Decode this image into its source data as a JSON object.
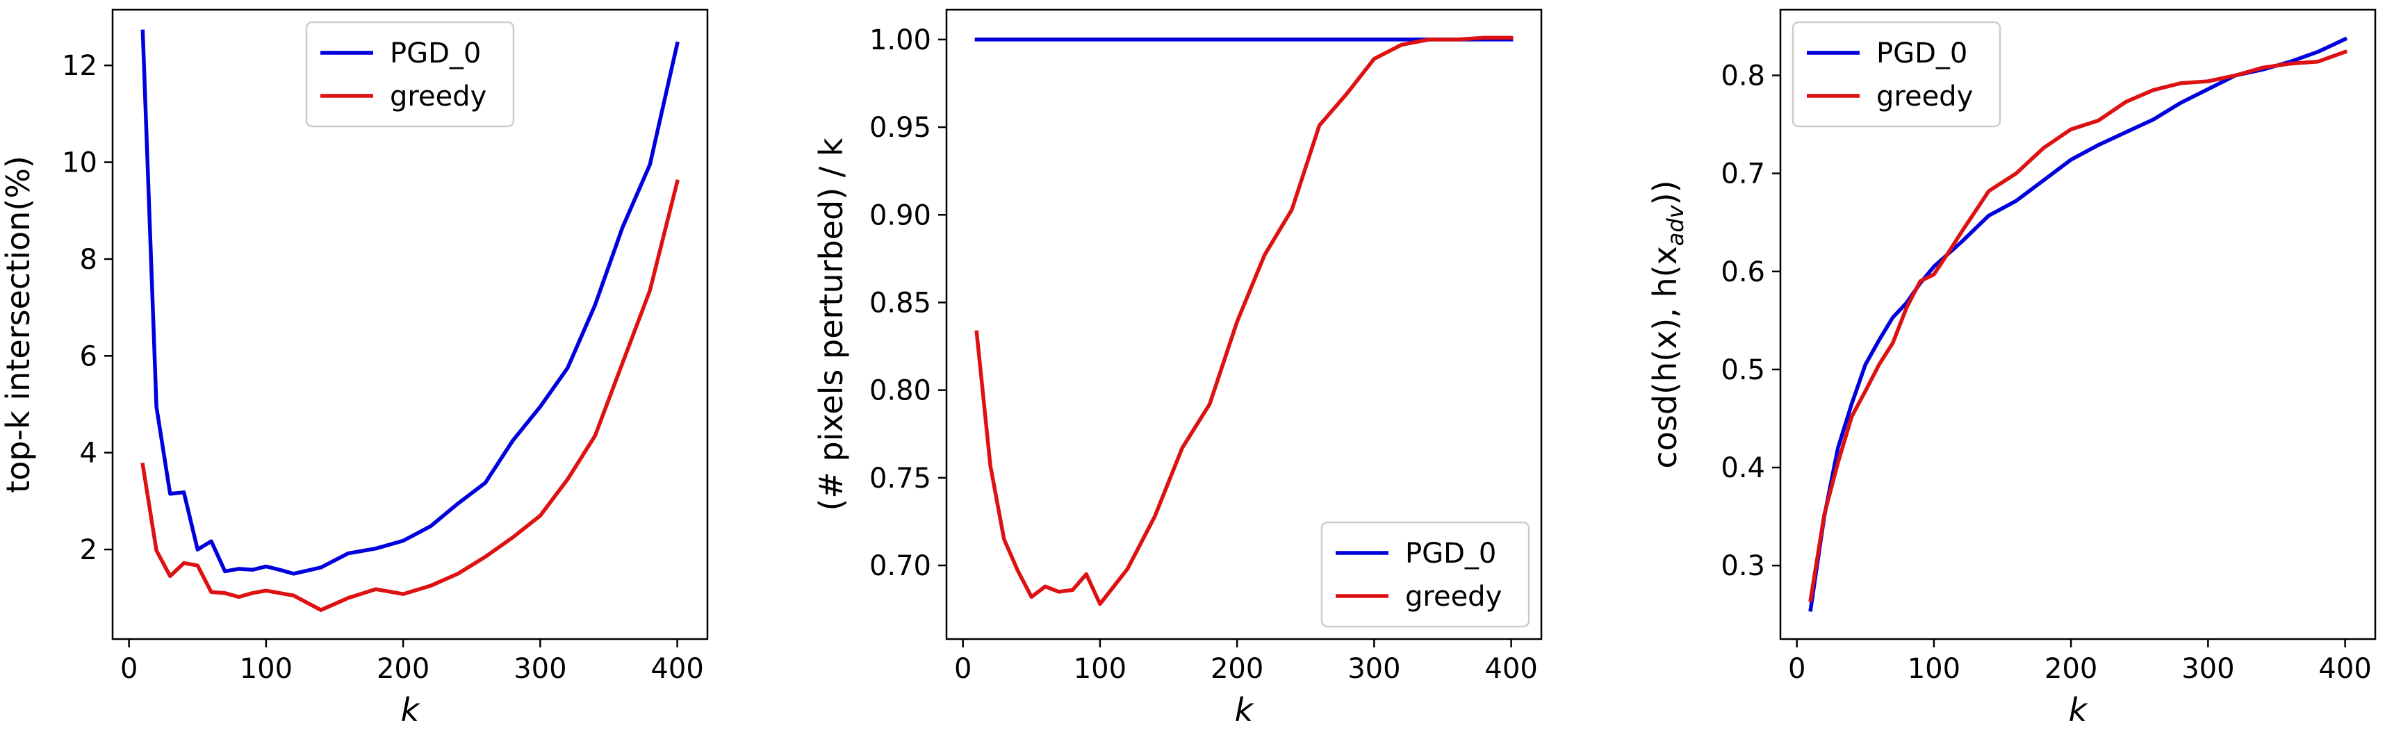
{
  "chart_data": [
    {
      "type": "line",
      "xlabel": "k",
      "ylabel": "top-k intersection(%)",
      "xlim": [
        -12,
        422
      ],
      "ylim": [
        0.15,
        13.15
      ],
      "xticks": [
        0,
        100,
        200,
        300,
        400
      ],
      "yticks": [
        2,
        4,
        6,
        8,
        10,
        12
      ],
      "ytick_format": "int",
      "legend_position": "upper center",
      "grid": false,
      "series": [
        {
          "name": "PGD_0",
          "color": "#0000dd",
          "x": [
            10,
            20,
            30,
            40,
            50,
            60,
            70,
            80,
            90,
            100,
            110,
            120,
            140,
            160,
            180,
            200,
            220,
            240,
            260,
            280,
            300,
            320,
            340,
            360,
            380,
            400
          ],
          "y": [
            12.7,
            4.95,
            3.15,
            3.18,
            2.0,
            2.17,
            1.55,
            1.6,
            1.58,
            1.65,
            1.58,
            1.5,
            1.63,
            1.92,
            2.02,
            2.18,
            2.48,
            2.95,
            3.38,
            4.25,
            4.95,
            5.75,
            7.05,
            8.65,
            9.95,
            12.45
          ]
        },
        {
          "name": "greedy",
          "color": "#dd1111",
          "x": [
            10,
            20,
            30,
            40,
            50,
            60,
            70,
            80,
            90,
            100,
            120,
            140,
            160,
            180,
            200,
            220,
            240,
            260,
            280,
            300,
            320,
            340,
            360,
            380,
            400
          ],
          "y": [
            3.75,
            1.98,
            1.45,
            1.72,
            1.67,
            1.12,
            1.1,
            1.02,
            1.1,
            1.15,
            1.05,
            0.75,
            1.0,
            1.18,
            1.08,
            1.25,
            1.5,
            1.85,
            2.25,
            2.7,
            3.45,
            4.35,
            5.85,
            7.35,
            9.6
          ]
        }
      ]
    },
    {
      "type": "line",
      "xlabel": "k",
      "ylabel": "(# pixels perturbed) / k",
      "xlim": [
        -12,
        422
      ],
      "ylim": [
        0.658,
        1.017
      ],
      "xticks": [
        0,
        100,
        200,
        300,
        400
      ],
      "yticks": [
        0.7,
        0.75,
        0.8,
        0.85,
        0.9,
        0.95,
        1.0
      ],
      "ytick_format": "2dp",
      "legend_position": "lower right",
      "grid": false,
      "series": [
        {
          "name": "PGD_0",
          "color": "#0000dd",
          "x": [
            10,
            100,
            200,
            300,
            350,
            400
          ],
          "y": [
            1.0,
            1.0,
            1.0,
            1.0,
            1.0,
            1.0
          ]
        },
        {
          "name": "greedy",
          "color": "#dd1111",
          "x": [
            10,
            20,
            30,
            40,
            50,
            60,
            70,
            80,
            90,
            100,
            120,
            140,
            160,
            180,
            200,
            220,
            240,
            260,
            280,
            300,
            320,
            340,
            360,
            380,
            400
          ],
          "y": [
            0.833,
            0.757,
            0.715,
            0.697,
            0.682,
            0.688,
            0.685,
            0.686,
            0.695,
            0.678,
            0.698,
            0.728,
            0.767,
            0.792,
            0.839,
            0.877,
            0.903,
            0.951,
            0.969,
            0.989,
            0.997,
            1.0,
            1.0,
            1.001,
            1.001
          ]
        }
      ]
    },
    {
      "type": "line",
      "xlabel": "k",
      "ylabel": "cosd(h(x), h(x_adv))",
      "xlim": [
        -12,
        422
      ],
      "ylim": [
        0.225,
        0.867
      ],
      "xticks": [
        0,
        100,
        200,
        300,
        400
      ],
      "yticks": [
        0.3,
        0.4,
        0.5,
        0.6,
        0.7,
        0.8
      ],
      "ytick_format": "1dp",
      "legend_position": "upper left",
      "grid": false,
      "series": [
        {
          "name": "PGD_0",
          "color": "#0000dd",
          "x": [
            10,
            20,
            30,
            40,
            50,
            60,
            70,
            80,
            90,
            100,
            120,
            140,
            160,
            180,
            200,
            220,
            240,
            260,
            280,
            300,
            320,
            340,
            360,
            380,
            400
          ],
          "y": [
            0.255,
            0.35,
            0.42,
            0.465,
            0.505,
            0.53,
            0.553,
            0.568,
            0.588,
            0.605,
            0.63,
            0.657,
            0.672,
            0.693,
            0.714,
            0.729,
            0.742,
            0.755,
            0.772,
            0.786,
            0.8,
            0.806,
            0.814,
            0.824,
            0.837
          ]
        },
        {
          "name": "greedy",
          "color": "#dd1111",
          "x": [
            10,
            20,
            30,
            40,
            50,
            60,
            70,
            80,
            90,
            100,
            110,
            120,
            140,
            160,
            180,
            200,
            220,
            240,
            260,
            280,
            300,
            320,
            340,
            360,
            380,
            400
          ],
          "y": [
            0.265,
            0.352,
            0.405,
            0.452,
            0.478,
            0.505,
            0.527,
            0.563,
            0.59,
            0.597,
            0.618,
            0.64,
            0.682,
            0.7,
            0.726,
            0.745,
            0.754,
            0.773,
            0.785,
            0.792,
            0.794,
            0.8,
            0.808,
            0.812,
            0.814,
            0.824
          ]
        }
      ]
    }
  ]
}
